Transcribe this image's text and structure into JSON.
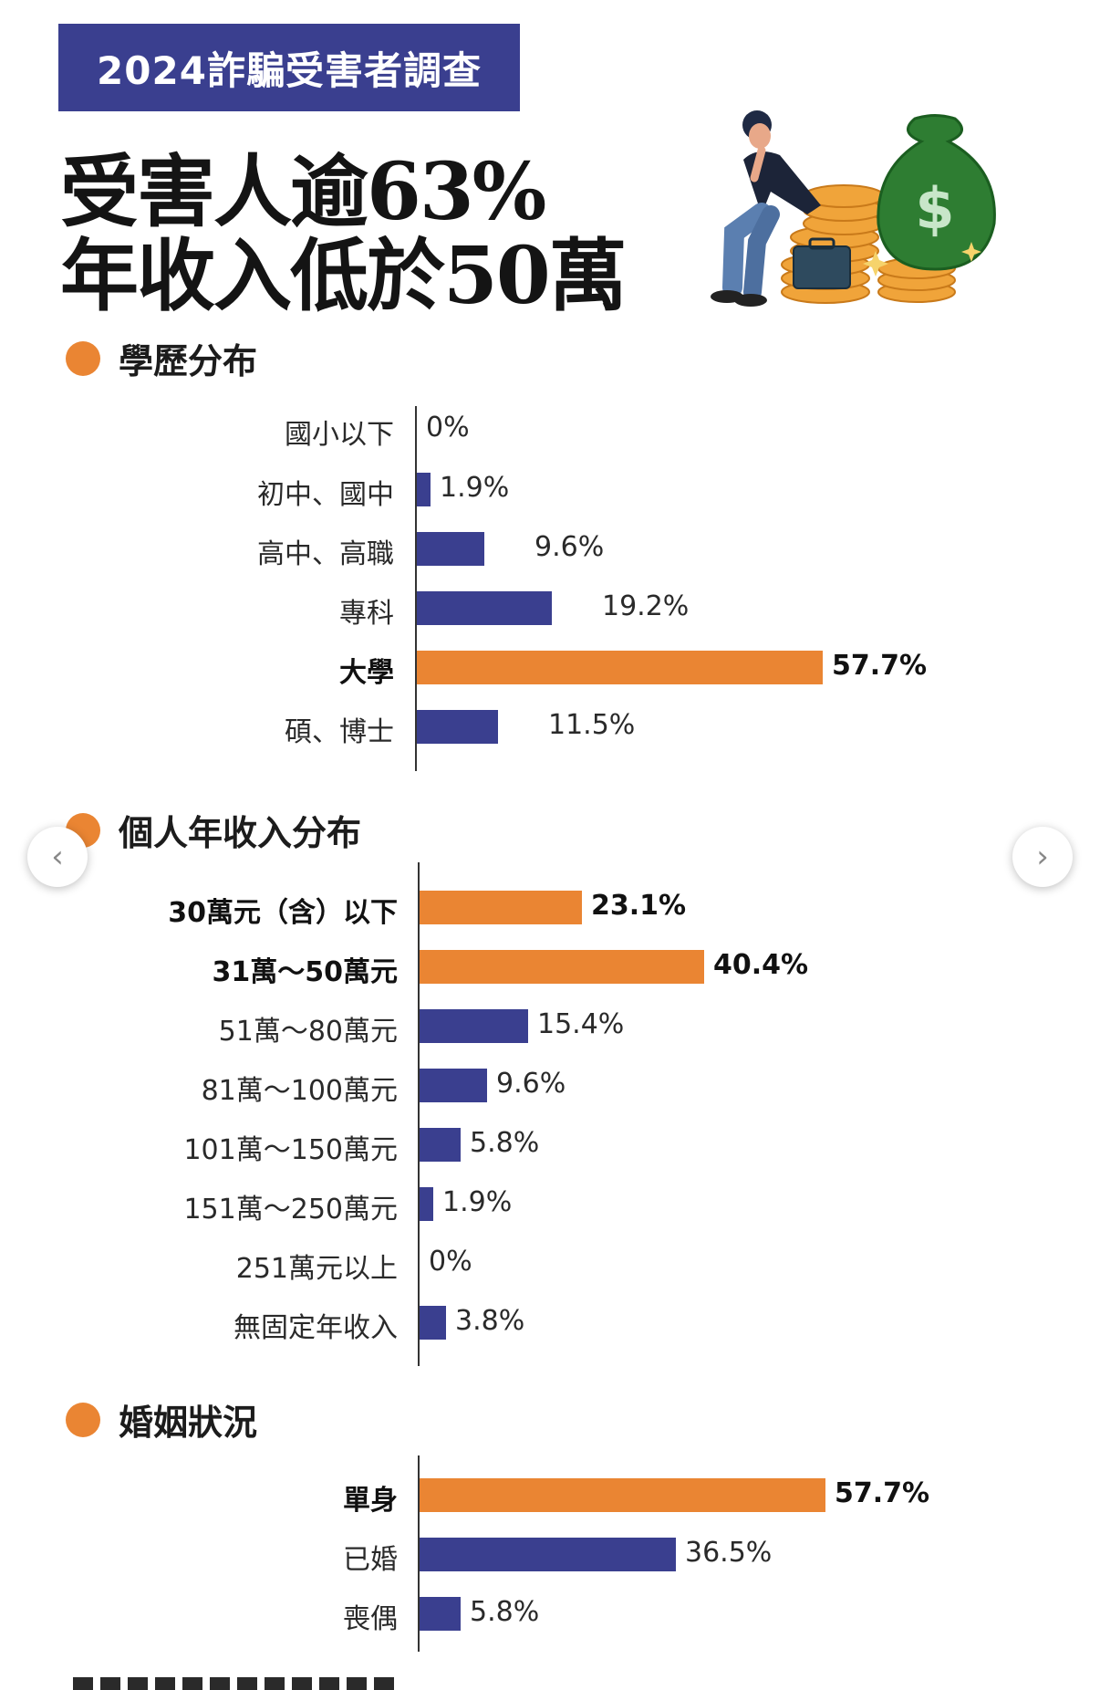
{
  "header": {
    "banner": "2024詐騙受害者調查",
    "headline_line1": "受害人逾63%",
    "headline_line2": "年收入低於50萬"
  },
  "colors": {
    "highlight": "#ea8533",
    "base": "#3a3f8f"
  },
  "icons": {
    "prev": "chevron-left-icon",
    "next": "chevron-right-icon",
    "hero": "worried-man-money-illustration"
  },
  "chart_data": [
    {
      "type": "bar",
      "orientation": "horizontal",
      "title": "學歷分布",
      "unit": "%",
      "xlim": [
        0,
        57.7
      ],
      "categories": [
        "國小以下",
        "初中、國中",
        "高中、高職",
        "專科",
        "大學",
        "碩、博士"
      ],
      "values": [
        0,
        1.9,
        9.6,
        19.2,
        57.7,
        11.5
      ],
      "labels": [
        "0%",
        "1.9%",
        "9.6%",
        "19.2%",
        "57.7%",
        "11.5%"
      ],
      "highlight": [
        4
      ]
    },
    {
      "type": "bar",
      "orientation": "horizontal",
      "title": "個人年收入分布",
      "unit": "%",
      "xlim": [
        0,
        57.7
      ],
      "categories": [
        "30萬元（含）以下",
        "31萬～50萬元",
        "51萬～80萬元",
        "81萬～100萬元",
        "101萬～150萬元",
        "151萬～250萬元",
        "251萬元以上",
        "無固定年收入"
      ],
      "values": [
        23.1,
        40.4,
        15.4,
        9.6,
        5.8,
        1.9,
        0,
        3.8
      ],
      "labels": [
        "23.1%",
        "40.4%",
        "15.4%",
        "9.6%",
        "5.8%",
        "1.9%",
        "0%",
        "3.8%"
      ],
      "highlight": [
        0,
        1
      ]
    },
    {
      "type": "bar",
      "orientation": "horizontal",
      "title": "婚姻狀況",
      "unit": "%",
      "xlim": [
        0,
        57.7
      ],
      "categories": [
        "單身",
        "已婚",
        "喪偶"
      ],
      "values": [
        57.7,
        36.5,
        5.8
      ],
      "labels": [
        "57.7%",
        "36.5%",
        "5.8%"
      ],
      "highlight": [
        0
      ]
    }
  ]
}
